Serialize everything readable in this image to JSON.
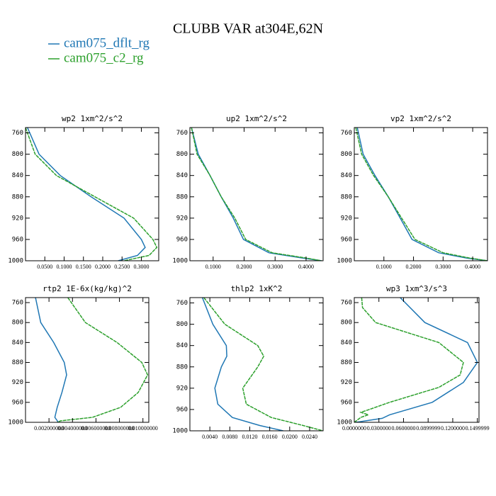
{
  "title": "CLUBB VAR at304E,62N",
  "chart_data": [
    {
      "type": "line",
      "title": "wp2   1xm^2/s^2",
      "ylim": [
        750,
        1000
      ],
      "y_inverted": true,
      "yticks": [
        760,
        800,
        840,
        880,
        920,
        960,
        1000
      ],
      "xlim": [
        0.0,
        0.345
      ],
      "xticks": [
        {
          "value": 0.05,
          "label": "0.0500"
        },
        {
          "value": 0.1,
          "label": "0.1000"
        },
        {
          "value": 0.15,
          "label": "0.1500"
        },
        {
          "value": 0.2,
          "label": "0.2000"
        },
        {
          "value": 0.25,
          "label": "0.2500"
        },
        {
          "value": 0.3,
          "label": "0.3000"
        }
      ],
      "series": [
        {
          "name": "cam075_dflt_rg",
          "color": "#1f77b4",
          "y": [
            750,
            800,
            840,
            880,
            920,
            960,
            975,
            990,
            1000
          ],
          "values": [
            0.005,
            0.035,
            0.09,
            0.17,
            0.255,
            0.3,
            0.31,
            0.29,
            0.24
          ]
        },
        {
          "name": "cam075_c2_rg",
          "color": "#2ca02c",
          "dashed": true,
          "y": [
            750,
            800,
            840,
            880,
            920,
            960,
            975,
            990,
            1000
          ],
          "values": [
            0.0,
            0.025,
            0.08,
            0.18,
            0.28,
            0.33,
            0.34,
            0.32,
            0.255
          ]
        }
      ]
    },
    {
      "type": "line",
      "title": "up2   1xm^2/s^2",
      "ylim": [
        750,
        1000
      ],
      "y_inverted": true,
      "yticks": [
        760,
        800,
        840,
        880,
        920,
        960,
        1000
      ],
      "xlim": [
        0.025,
        0.455
      ],
      "xticks": [
        {
          "value": 0.1,
          "label": "0.1000"
        },
        {
          "value": 0.2,
          "label": "0.2000"
        },
        {
          "value": 0.3,
          "label": "0.3000"
        },
        {
          "value": 0.4,
          "label": "0.4000"
        }
      ],
      "series": [
        {
          "color": "#1f77b4",
          "y": [
            750,
            800,
            840,
            880,
            920,
            960,
            985,
            995,
            1000
          ],
          "values": [
            0.03,
            0.052,
            0.09,
            0.126,
            0.165,
            0.198,
            0.28,
            0.39,
            0.45
          ]
        },
        {
          "color": "#2ca02c",
          "dashed": true,
          "y": [
            750,
            800,
            840,
            880,
            920,
            960,
            985,
            995,
            1000
          ],
          "values": [
            0.03,
            0.048,
            0.09,
            0.126,
            0.17,
            0.205,
            0.29,
            0.4,
            0.45
          ]
        }
      ]
    },
    {
      "type": "line",
      "title": "vp2   1xm^2/s^2",
      "ylim": [
        750,
        1000
      ],
      "y_inverted": true,
      "yticks": [
        760,
        800,
        840,
        880,
        920,
        960,
        1000
      ],
      "xlim": [
        0.0,
        0.45
      ],
      "xticks": [
        {
          "value": 0.1,
          "label": "0.1000"
        },
        {
          "value": 0.2,
          "label": "0.2000"
        },
        {
          "value": 0.3,
          "label": "0.3000"
        },
        {
          "value": 0.4,
          "label": "0.4000"
        }
      ],
      "series": [
        {
          "color": "#1f77b4",
          "y": [
            750,
            800,
            840,
            880,
            920,
            960,
            985,
            995,
            1000
          ],
          "values": [
            0.01,
            0.03,
            0.07,
            0.115,
            0.155,
            0.195,
            0.285,
            0.38,
            0.45
          ]
        },
        {
          "color": "#2ca02c",
          "dashed": true,
          "y": [
            750,
            800,
            840,
            880,
            920,
            960,
            985,
            995,
            1000
          ],
          "values": [
            0.005,
            0.025,
            0.065,
            0.115,
            0.16,
            0.205,
            0.3,
            0.39,
            0.45
          ]
        }
      ]
    },
    {
      "type": "line",
      "title": "rtp2   1E-6x(kg/kg)^2",
      "ylim": [
        750,
        1000
      ],
      "y_inverted": true,
      "yticks": [
        760,
        800,
        840,
        880,
        920,
        960,
        1000
      ],
      "xlim": [
        0.0,
        0.0105
      ],
      "xticks": [
        {
          "value": 0.002,
          "label": "0.002000000"
        },
        {
          "value": 0.004,
          "label": "0.004000000"
        },
        {
          "value": 0.006,
          "label": "0.006000000"
        },
        {
          "value": 0.008,
          "label": "0.008000000"
        },
        {
          "value": 0.01,
          "label": "0.010000000"
        }
      ],
      "series": [
        {
          "color": "#1f77b4",
          "y": [
            750,
            800,
            840,
            880,
            905,
            940,
            970,
            990,
            1000
          ],
          "values": [
            0.00085,
            0.0013,
            0.0024,
            0.0033,
            0.0035,
            0.0031,
            0.0027,
            0.0025,
            0.0028
          ]
        },
        {
          "color": "#2ca02c",
          "dashed": true,
          "y": [
            750,
            800,
            840,
            880,
            905,
            940,
            970,
            990,
            997,
            1000
          ],
          "values": [
            0.0036,
            0.0051,
            0.0078,
            0.0099,
            0.0104,
            0.0096,
            0.0081,
            0.0057,
            0.003,
            0.0027
          ]
        }
      ]
    },
    {
      "type": "line",
      "title": "thlp2   1xK^2",
      "ylim": [
        750,
        1000
      ],
      "y_inverted": true,
      "yticks": [
        760,
        800,
        840,
        880,
        920,
        960,
        1000
      ],
      "xlim": [
        0.0,
        0.0267
      ],
      "xticks": [
        {
          "value": 0.004,
          "label": "0.0040"
        },
        {
          "value": 0.008,
          "label": "0.0080"
        },
        {
          "value": 0.012,
          "label": "0.0120"
        },
        {
          "value": 0.016,
          "label": "0.0160"
        },
        {
          "value": 0.02,
          "label": "0.0200"
        },
        {
          "value": 0.024,
          "label": "0.0240"
        }
      ],
      "series": [
        {
          "color": "#1f77b4",
          "y": [
            750,
            800,
            840,
            860,
            880,
            920,
            950,
            975,
            990,
            1000
          ],
          "values": [
            0.0025,
            0.0046,
            0.0073,
            0.0074,
            0.0063,
            0.005,
            0.0056,
            0.0085,
            0.014,
            0.0187
          ]
        },
        {
          "color": "#2ca02c",
          "dashed": true,
          "y": [
            750,
            800,
            840,
            860,
            880,
            920,
            950,
            975,
            990,
            1000
          ],
          "values": [
            0.0028,
            0.007,
            0.0136,
            0.0148,
            0.0136,
            0.0106,
            0.0113,
            0.0163,
            0.0227,
            0.0267
          ]
        }
      ]
    },
    {
      "type": "line",
      "title": "wp3   1xm^3/s^3",
      "ylim": [
        750,
        1000
      ],
      "y_inverted": true,
      "yticks": [
        760,
        800,
        840,
        880,
        920,
        960,
        1000
      ],
      "xlim": [
        0.0,
        0.152
      ],
      "xticks": [
        {
          "value": 0.0,
          "label": "0.0000000"
        },
        {
          "value": 0.03,
          "label": "0.0300000"
        },
        {
          "value": 0.06,
          "label": "0.0600000"
        },
        {
          "value": 0.09,
          "label": "0.0899999"
        },
        {
          "value": 0.12,
          "label": "0.1200000"
        },
        {
          "value": 0.15,
          "label": "0.1499999"
        }
      ],
      "series": [
        {
          "color": "#1f77b4",
          "y": [
            750,
            800,
            840,
            880,
            920,
            960,
            985,
            992,
            1000
          ],
          "values": [
            0.056,
            0.086,
            0.138,
            0.15,
            0.133,
            0.095,
            0.043,
            0.034,
            0.002
          ]
        },
        {
          "color": "#2ca02c",
          "dashed": true,
          "y": [
            750,
            770,
            800,
            840,
            880,
            905,
            930,
            960,
            975,
            980,
            985,
            990,
            1000
          ],
          "values": [
            0.009,
            0.01,
            0.026,
            0.103,
            0.133,
            0.129,
            0.103,
            0.043,
            0.017,
            0.008,
            0.017,
            0.008,
            0.0
          ]
        }
      ]
    }
  ]
}
